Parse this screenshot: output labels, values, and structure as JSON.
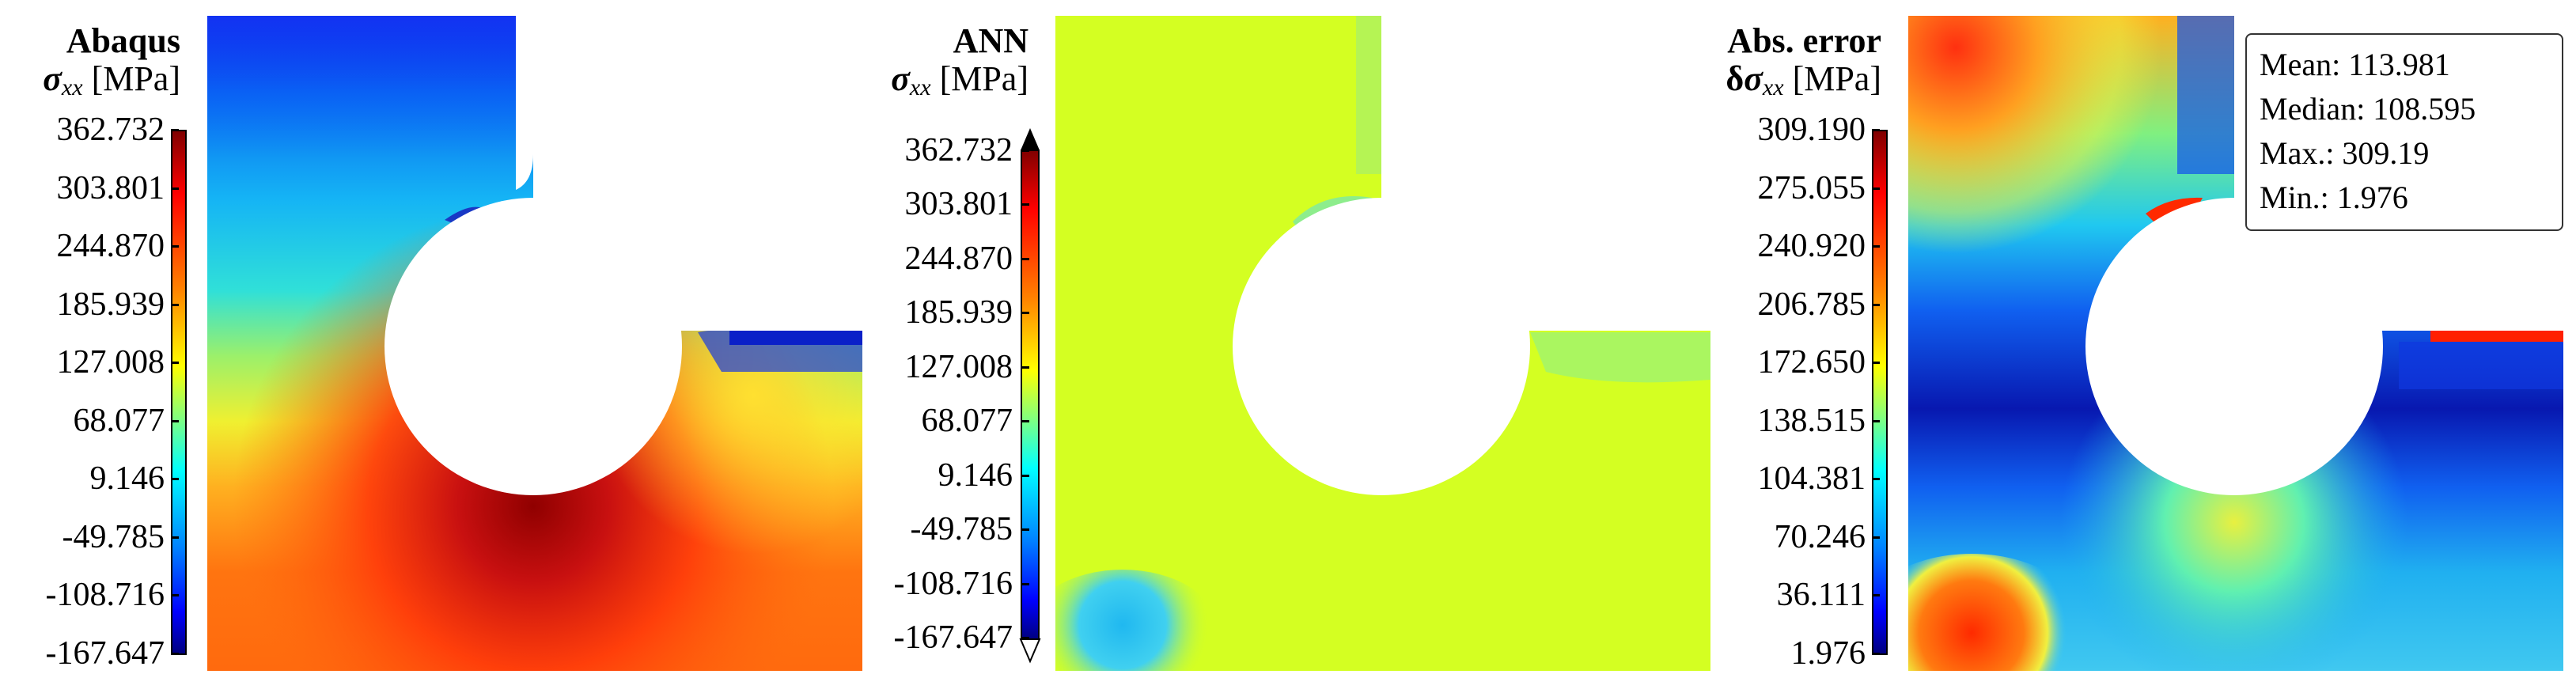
{
  "panels": [
    {
      "title": "Abaqus",
      "quantity": {
        "symbol": "σ",
        "subscript": "xx",
        "unit": "[MPa]"
      },
      "ticks": [
        "362.732",
        "303.801",
        "244.870",
        "185.939",
        "127.008",
        "68.077",
        "9.146",
        "-49.785",
        "-108.716",
        "-167.647"
      ]
    },
    {
      "title": "ANN",
      "quantity": {
        "symbol": "σ",
        "subscript": "xx",
        "unit": "[MPa]"
      },
      "ticks": [
        "362.732",
        "303.801",
        "244.870",
        "185.939",
        "127.008",
        "68.077",
        "9.146",
        "-49.785",
        "-108.716",
        "-167.647"
      ]
    },
    {
      "title": "Abs. error",
      "quantity": {
        "prefix": "δ",
        "symbol": "σ",
        "subscript": "xx",
        "unit": "[MPa]"
      },
      "ticks": [
        "309.190",
        "275.055",
        "240.920",
        "206.785",
        "172.650",
        "138.515",
        "104.381",
        "70.246",
        "36.111",
        "1.976"
      ]
    }
  ],
  "stats": {
    "mean": "Mean: 113.981",
    "median": "Median: 108.595",
    "max": "Max.: 309.19",
    "min": "Min.: 1.976"
  }
}
